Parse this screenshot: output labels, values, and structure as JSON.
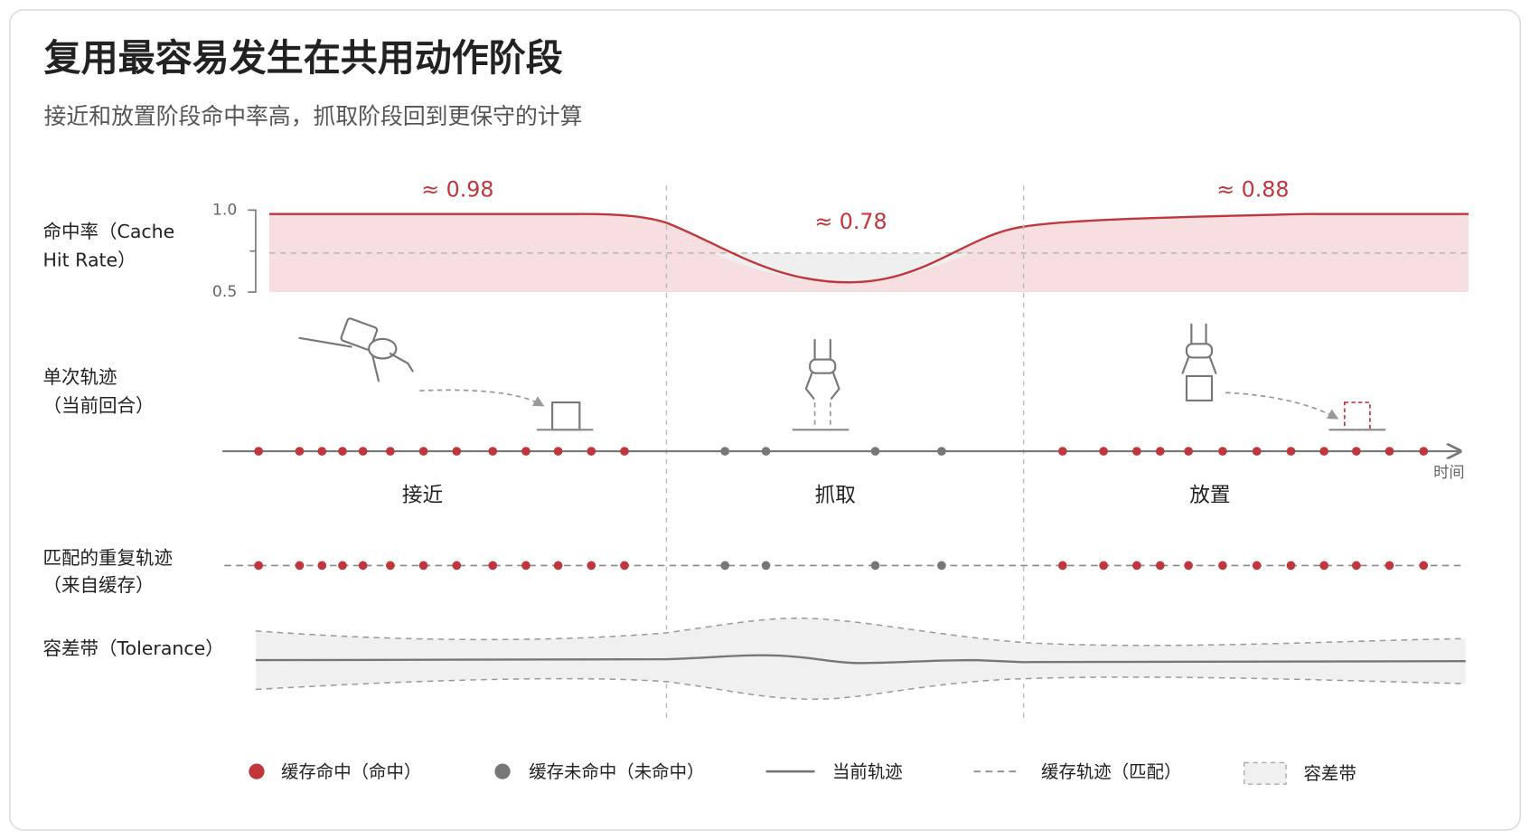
{
  "header": {
    "title": "复用最容易发生在共用动作阶段",
    "subtitle": "接近和放置阶段命中率高，抓取阶段回到更保守的计算"
  },
  "hit_rate": {
    "label": [
      "命中率（Cache",
      "Hit Rate）"
    ],
    "ticks": [
      "1.0",
      "0.5"
    ],
    "annotations": [
      "≈ 0.98",
      "≈ 0.78",
      "≈ 0.88"
    ]
  },
  "rows": {
    "current": [
      "单次轨迹",
      "（当前回合）"
    ],
    "cached": [
      "匹配的重复轨迹",
      "（来自缓存）"
    ],
    "tolerance": "容差带（Tolerance）"
  },
  "phases": [
    "接近",
    "抓取",
    "放置"
  ],
  "time_axis": "时间",
  "legend": [
    "缓存命中（命中）",
    "缓存未命中（未命中）",
    "当前轨迹",
    "缓存轨迹（匹配）",
    "容差带"
  ]
}
